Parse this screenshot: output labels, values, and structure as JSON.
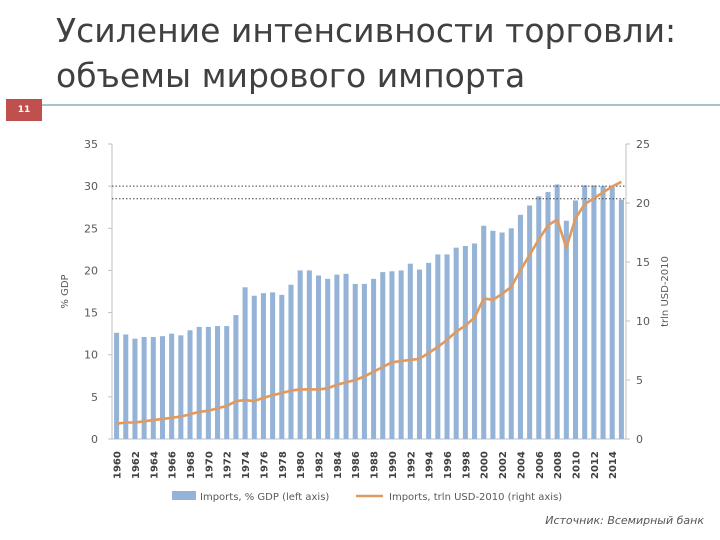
{
  "slide": {
    "title_line1": "Усиление интенсивности торговли:",
    "title_line2": "объемы мирового импорта",
    "number": "11",
    "source": "Источник: Всемирный банк"
  },
  "chart_data": {
    "type": "bar",
    "title": "",
    "x": [
      1960,
      1961,
      1962,
      1963,
      1964,
      1965,
      1966,
      1967,
      1968,
      1969,
      1970,
      1971,
      1972,
      1973,
      1974,
      1975,
      1976,
      1977,
      1978,
      1979,
      1980,
      1981,
      1982,
      1983,
      1984,
      1985,
      1986,
      1987,
      1988,
      1989,
      1990,
      1991,
      1992,
      1993,
      1994,
      1995,
      1996,
      1997,
      1998,
      1999,
      2000,
      2001,
      2002,
      2003,
      2004,
      2005,
      2006,
      2007,
      2008,
      2009,
      2010,
      2011,
      2012,
      2013,
      2014,
      2015
    ],
    "x_tick_labels": [
      "1960",
      "1962",
      "1964",
      "1966",
      "1968",
      "1970",
      "1972",
      "1974",
      "1976",
      "1978",
      "1980",
      "1982",
      "1984",
      "1986",
      "1988",
      "1990",
      "1992",
      "1994",
      "1996",
      "1998",
      "2000",
      "2002",
      "2004",
      "2006",
      "2008",
      "2010",
      "2012",
      "2014"
    ],
    "ylabel_left": "% GDP",
    "ylabel_right": "trln USD-2010",
    "ylim_left": [
      0,
      35
    ],
    "ylim_right": [
      0,
      25
    ],
    "yticks_left": [
      "0",
      "5",
      "10",
      "15",
      "20",
      "25",
      "30",
      "35"
    ],
    "yticks_right": [
      "0",
      "5",
      "10",
      "15",
      "20",
      "25"
    ],
    "reference_lines_left": [
      30,
      28.5
    ],
    "legend_position": "bottom",
    "series": [
      {
        "name": "Imports, % GDP (left axis)",
        "type": "bar",
        "axis": "left",
        "color": "#95b3d7",
        "values": [
          12.6,
          12.4,
          11.9,
          12.1,
          12.1,
          12.2,
          12.5,
          12.3,
          12.9,
          13.3,
          13.3,
          13.4,
          13.4,
          14.7,
          18.0,
          17.0,
          17.3,
          17.4,
          17.1,
          18.3,
          20.0,
          20.0,
          19.4,
          19.0,
          19.5,
          19.6,
          18.4,
          18.4,
          19.0,
          19.8,
          19.9,
          20.0,
          20.8,
          20.1,
          20.9,
          21.9,
          21.9,
          22.7,
          22.9,
          23.2,
          25.3,
          24.7,
          24.5,
          25.0,
          26.6,
          27.7,
          28.8,
          29.3,
          30.2,
          25.9,
          28.3,
          30.1,
          30.1,
          30.0,
          29.9,
          28.4
        ]
      },
      {
        "name": "Imports, trln USD-2010 (right axis)",
        "type": "line",
        "axis": "right",
        "color": "#e09a60",
        "values": [
          1.3,
          1.4,
          1.4,
          1.5,
          1.6,
          1.7,
          1.8,
          1.9,
          2.1,
          2.3,
          2.4,
          2.6,
          2.8,
          3.2,
          3.3,
          3.2,
          3.5,
          3.7,
          3.9,
          4.1,
          4.2,
          4.2,
          4.2,
          4.3,
          4.6,
          4.8,
          5.0,
          5.3,
          5.7,
          6.1,
          6.5,
          6.6,
          6.7,
          6.8,
          7.3,
          7.8,
          8.4,
          9.1,
          9.6,
          10.3,
          11.9,
          11.8,
          12.3,
          12.9,
          14.3,
          15.6,
          16.9,
          18.1,
          18.6,
          16.2,
          18.7,
          19.9,
          20.4,
          20.9,
          21.4,
          21.8
        ]
      }
    ]
  }
}
